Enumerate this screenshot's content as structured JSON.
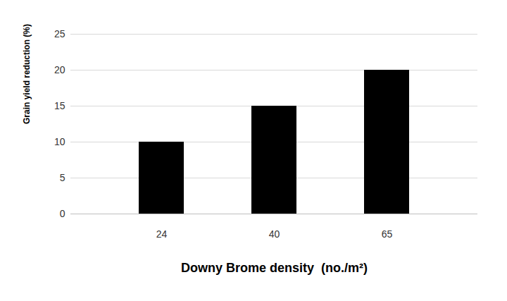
{
  "chart_data": {
    "type": "bar",
    "x_label": "Downy Brome density  (no./m²)",
    "y_label": "Grain yield reduction (%)",
    "categories": [
      "24",
      "40",
      "65"
    ],
    "values": [
      10,
      15,
      20
    ],
    "color": "#000000",
    "ylim": [
      0,
      25
    ],
    "yticks": [
      0,
      5,
      10,
      15,
      20,
      25
    ],
    "grid": true
  }
}
